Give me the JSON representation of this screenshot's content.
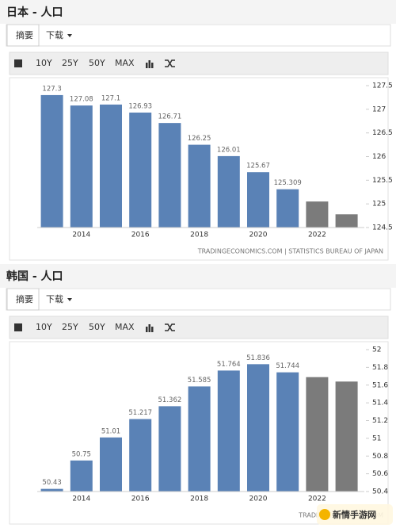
{
  "chart_data": [
    {
      "type": "bar",
      "title": "日本 - 人口",
      "tabs": [
        "摘要",
        "下载"
      ],
      "ranges": [
        "10Y",
        "25Y",
        "50Y",
        "MAX"
      ],
      "categories": [
        null,
        "2014",
        null,
        "2016",
        null,
        "2018",
        null,
        "2020",
        null,
        "2022",
        null
      ],
      "values": [
        127.3,
        127.08,
        127.1,
        126.93,
        126.71,
        126.25,
        126.01,
        125.67,
        125.309,
        125.05,
        124.78
      ],
      "value_labels": [
        "127.3",
        "127.08",
        "127.1",
        "126.93",
        "126.71",
        "126.25",
        "126.01",
        "125.67",
        "125.309",
        null,
        null
      ],
      "colors": [
        "#5a82b6",
        "#5a82b6",
        "#5a82b6",
        "#5a82b6",
        "#5a82b6",
        "#5a82b6",
        "#5a82b6",
        "#5a82b6",
        "#5a82b6",
        "#7b7b7b",
        "#7b7b7b"
      ],
      "ylim": [
        124.5,
        127.5
      ],
      "yticks": [
        124.5,
        125,
        125.5,
        126,
        126.5,
        127,
        127.5
      ],
      "grid": false,
      "source": "TRADINGECONOMICS.COM | STATISTICS BUREAU OF JAPAN"
    },
    {
      "type": "bar",
      "title": "韩国 - 人口",
      "tabs": [
        "摘要",
        "下载"
      ],
      "ranges": [
        "10Y",
        "25Y",
        "50Y",
        "MAX"
      ],
      "categories": [
        null,
        "2014",
        null,
        "2016",
        null,
        "2018",
        null,
        "2020",
        null,
        "2022",
        null
      ],
      "values": [
        50.43,
        50.75,
        51.01,
        51.217,
        51.362,
        51.585,
        51.764,
        51.836,
        51.744,
        51.69,
        51.64
      ],
      "value_labels": [
        "50.43",
        "50.75",
        "51.01",
        "51.217",
        "51.362",
        "51.585",
        "51.764",
        "51.836",
        "51.744",
        null,
        null
      ],
      "colors": [
        "#5a82b6",
        "#5a82b6",
        "#5a82b6",
        "#5a82b6",
        "#5a82b6",
        "#5a82b6",
        "#5a82b6",
        "#5a82b6",
        "#5a82b6",
        "#7b7b7b",
        "#7b7b7b"
      ],
      "ylim": [
        50.4,
        52
      ],
      "yticks": [
        50.4,
        50.6,
        50.8,
        51,
        51.2,
        51.4,
        51.6,
        51.8,
        52
      ],
      "grid": false,
      "source": "TRADINGECONOMICS.COM"
    }
  ],
  "watermark": "新情手游网"
}
